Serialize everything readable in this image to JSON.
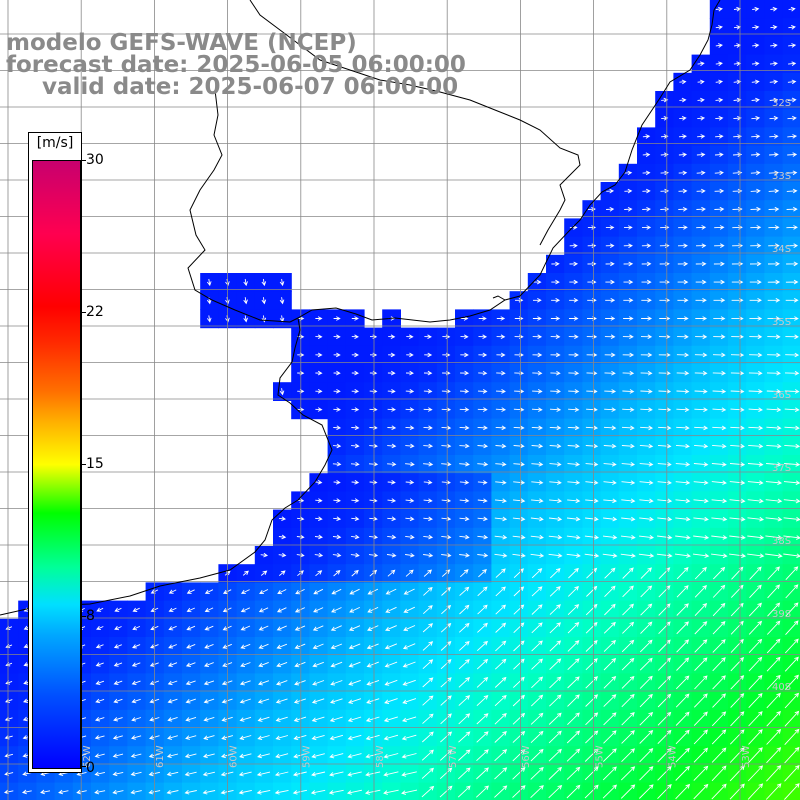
{
  "title": {
    "line1": "modelo GEFS-WAVE (NCEP)",
    "line2": "forecast date: 2025-06-05 06:00:00",
    "line3": "valid date: 2025-06-07 06:00:00"
  },
  "colorbar": {
    "unit": "[m/s]",
    "ticks": [
      {
        "label": "30",
        "value": 30
      },
      {
        "label": "22",
        "value": 22
      },
      {
        "label": "15",
        "value": 15
      },
      {
        "label": "8",
        "value": 8
      },
      {
        "label": "0",
        "value": 0
      }
    ],
    "range": [
      0,
      30
    ]
  },
  "colors": {
    "low": "#0000ff",
    "mid": "#00e0ff",
    "high": "#00ff00",
    "coast": "#000000",
    "grid": "#808080",
    "vector": "#ffffff",
    "label": "#8a8a8a"
  },
  "lat_labels": [
    "32S",
    "33S",
    "34S",
    "35S",
    "36S",
    "37S",
    "38S",
    "39S",
    "40S"
  ],
  "lon_labels": [
    "62W",
    "61W",
    "60W",
    "59W",
    "58W",
    "57W",
    "56W",
    "55W",
    "54W",
    "53W"
  ]
}
